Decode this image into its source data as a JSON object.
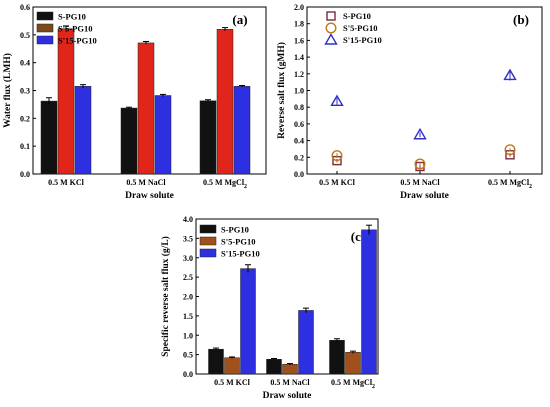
{
  "chart_data": [
    {
      "type": "bar",
      "panel_label": "(a)",
      "categories": [
        "0.5 M KCl",
        "0.5 M NaCl",
        "0.5 M MgCl"
      ],
      "category_subscript": [
        "",
        "",
        "2"
      ],
      "xlabel": "Draw solute",
      "ylabel": "Water flux (LMH)",
      "ylim": [
        0.0,
        0.6
      ],
      "yticks": [
        "0.0",
        "0.1",
        "0.2",
        "0.3",
        "0.4",
        "0.5",
        "0.6"
      ],
      "legend_position": "top-left",
      "series": [
        {
          "name": "S-PG10",
          "color": "#111111",
          "values": [
            0.262,
            0.237,
            0.263
          ],
          "errors": [
            0.012,
            0.003,
            0.004
          ]
        },
        {
          "name": "S'5-PG10",
          "color": "#e0261a",
          "values": [
            0.522,
            0.471,
            0.52
          ],
          "errors": [
            0.01,
            0.005,
            0.006
          ]
        },
        {
          "name": "S'15-PG10",
          "color": "#2d2fe0",
          "values": [
            0.315,
            0.282,
            0.315
          ],
          "errors": [
            0.006,
            0.004,
            0.003
          ]
        }
      ],
      "legend_colors": [
        "#111111",
        "#7a4a1a",
        "#2d2fe0"
      ]
    },
    {
      "type": "scatter",
      "panel_label": "(b)",
      "categories": [
        "0.5 M KCl",
        "0.5 M NaCl",
        "0.5 M MgCl"
      ],
      "category_subscript": [
        "",
        "",
        "2"
      ],
      "xlabel": "Draw solute",
      "ylabel": "Reverse salt flux (gMH)",
      "ylim": [
        0.0,
        2.0
      ],
      "yticks": [
        "0.0",
        "0.2",
        "0.4",
        "0.6",
        "0.8",
        "1.0",
        "1.2",
        "1.4",
        "1.6",
        "1.8",
        "2.0"
      ],
      "legend_position": "top-left",
      "series": [
        {
          "name": "S-PG10",
          "marker": "square",
          "color": "#7a2a3a",
          "values": [
            0.16,
            0.09,
            0.23
          ],
          "errors": [
            0.02,
            0.02,
            0.02
          ]
        },
        {
          "name": "S'5-PG10",
          "marker": "circle",
          "color": "#c07818",
          "values": [
            0.22,
            0.12,
            0.29
          ],
          "errors": [
            0.03,
            0.02,
            0.02
          ]
        },
        {
          "name": "S'15-PG10",
          "marker": "triangle",
          "color": "#3030c8",
          "values": [
            0.87,
            0.47,
            1.18
          ],
          "errors": [
            0.04,
            0.03,
            0.06
          ]
        }
      ]
    },
    {
      "type": "bar",
      "panel_label": "(c)",
      "categories": [
        "0.5 M KCl",
        "0.5 M NaCl",
        "0.5 M MgCl"
      ],
      "category_subscript": [
        "",
        "",
        "2"
      ],
      "xlabel": "Draw solute",
      "ylabel": "Specific reverse salt flux (g/L)",
      "ylim": [
        0.0,
        4.0
      ],
      "yticks": [
        "0.0",
        "0.5",
        "1.0",
        "1.5",
        "2.0",
        "2.5",
        "3.0",
        "3.5",
        "4.0"
      ],
      "legend_position": "top-left",
      "series": [
        {
          "name": "S-PG10",
          "color": "#111111",
          "values": [
            0.64,
            0.38,
            0.87
          ],
          "errors": [
            0.03,
            0.02,
            0.04
          ]
        },
        {
          "name": "S'5-PG10",
          "color": "#a0501a",
          "values": [
            0.42,
            0.25,
            0.56
          ],
          "errors": [
            0.02,
            0.02,
            0.03
          ]
        },
        {
          "name": "S'15-PG10",
          "color": "#2d2fe0",
          "values": [
            2.72,
            1.64,
            3.72
          ],
          "errors": [
            0.1,
            0.06,
            0.12
          ]
        }
      ],
      "legend_colors": [
        "#111111",
        "#a0501a",
        "#2d2fe0"
      ]
    }
  ]
}
